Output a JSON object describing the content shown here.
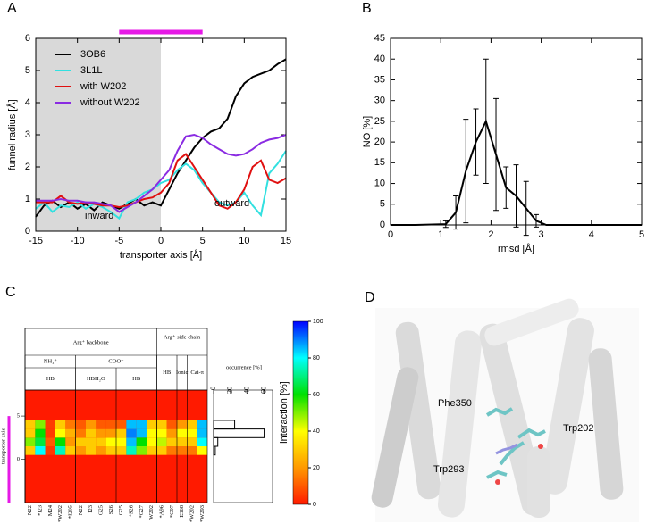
{
  "chart_data": [
    {
      "type": "line",
      "panel": "A",
      "xlabel": "transporter axis [Å]",
      "ylabel": "funnel radius [Å]",
      "xlim": [
        -15,
        15
      ],
      "ylim": [
        0,
        6
      ],
      "xticks": [
        -15,
        -10,
        -5,
        0,
        5,
        10,
        15
      ],
      "yticks": [
        0,
        1,
        2,
        3,
        4,
        5,
        6
      ],
      "shaded_x": [
        -15,
        0
      ],
      "shade_color": "#d9d9d9",
      "highlight_x": [
        -5,
        5
      ],
      "highlight_color": "#e619e6",
      "legend": "upper left",
      "annotations": [
        "inward",
        "outward"
      ],
      "x": [
        -15,
        -14,
        -13,
        -12,
        -11,
        -10,
        -9,
        -8,
        -7,
        -6,
        -5,
        -4,
        -3,
        -2,
        -1,
        0,
        1,
        2,
        3,
        4,
        5,
        6,
        7,
        8,
        9,
        10,
        11,
        12,
        13,
        14,
        15
      ],
      "series": [
        {
          "name": "3OB6",
          "color": "#000000",
          "values": [
            0.45,
            0.8,
            0.95,
            0.75,
            0.9,
            0.7,
            0.85,
            0.65,
            0.9,
            0.8,
            0.7,
            0.85,
            1.0,
            0.8,
            0.9,
            0.8,
            1.3,
            1.8,
            2.2,
            2.6,
            2.9,
            3.1,
            3.2,
            3.5,
            4.2,
            4.6,
            4.8,
            4.9,
            5.0,
            5.2,
            5.35
          ]
        },
        {
          "name": "3L1L",
          "color": "#33e0e0",
          "values": [
            0.7,
            0.9,
            0.6,
            0.8,
            0.75,
            0.9,
            0.7,
            0.85,
            0.75,
            0.6,
            0.4,
            0.9,
            1.0,
            1.2,
            1.3,
            1.5,
            1.6,
            1.9,
            2.1,
            1.9,
            1.5,
            1.2,
            0.9,
            0.8,
            0.9,
            1.2,
            0.8,
            0.5,
            1.8,
            2.1,
            2.5
          ]
        },
        {
          "name": "with W202",
          "color": "#e01010",
          "values": [
            0.9,
            0.9,
            0.9,
            1.1,
            0.9,
            0.85,
            0.9,
            0.85,
            0.8,
            0.8,
            0.75,
            0.8,
            0.9,
            1.0,
            1.05,
            1.2,
            1.5,
            2.2,
            2.4,
            2.0,
            1.6,
            1.2,
            0.8,
            0.7,
            0.9,
            1.3,
            2.0,
            2.2,
            1.6,
            1.5,
            1.65
          ]
        },
        {
          "name": "without W202",
          "color": "#8a2be2",
          "values": [
            0.95,
            0.95,
            0.95,
            1.0,
            0.95,
            0.95,
            0.9,
            0.9,
            0.85,
            0.8,
            0.6,
            0.75,
            0.9,
            1.1,
            1.3,
            1.6,
            1.9,
            2.5,
            2.95,
            3.0,
            2.9,
            2.7,
            2.55,
            2.4,
            2.35,
            2.4,
            2.55,
            2.75,
            2.85,
            2.9,
            3.0
          ]
        }
      ]
    },
    {
      "type": "errorline",
      "panel": "B",
      "xlabel": "rmsd [Å]",
      "ylabel": "NO [%]",
      "xlim": [
        0,
        5
      ],
      "ylim": [
        0,
        45
      ],
      "xticks": [
        0,
        1,
        2,
        3,
        4,
        5
      ],
      "yticks": [
        0,
        5,
        10,
        15,
        20,
        25,
        30,
        35,
        40,
        45
      ],
      "color": "#000000",
      "x": [
        0,
        0.5,
        1.1,
        1.3,
        1.5,
        1.7,
        1.9,
        2.1,
        2.3,
        2.5,
        2.7,
        2.9,
        3.1,
        3.5,
        4,
        4.5,
        5
      ],
      "values": [
        0,
        0,
        0.2,
        3,
        13,
        20,
        25,
        17,
        9,
        7,
        4,
        1,
        0,
        0,
        0,
        0,
        0
      ],
      "errors": [
        0,
        0,
        0.8,
        4,
        12.5,
        8,
        15,
        13.5,
        5,
        7.5,
        6.5,
        1.5,
        0,
        0,
        0,
        0,
        0
      ]
    },
    {
      "type": "heatmap",
      "panel": "C",
      "ylabel": "transporter axis",
      "ylim": [
        -5,
        8
      ],
      "yticks": [
        0,
        5
      ],
      "highlight_y": [
        -5,
        5
      ],
      "highlight_color": "#e619e6",
      "colorbar_label": "interaction [%]",
      "clim": [
        0,
        100
      ],
      "cticks": [
        0,
        20,
        40,
        60,
        80,
        100
      ],
      "colormap": [
        "#ff1a00",
        "#ff9900",
        "#ffff00",
        "#00e000",
        "#00ffff",
        "#0000ff"
      ],
      "groups": [
        {
          "label": "Arg⁺ backbone",
          "subgroups": [
            {
              "label": "NH₃⁺",
              "interactions": [
                {
                  "label": "HB",
                  "columns": [
                    "N22",
                    "*I23",
                    "M24",
                    "*W202",
                    "*I205"
                  ]
                }
              ]
            },
            {
              "label": "COO⁻",
              "interactions": [
                {
                  "label": "HBH₂O",
                  "columns": [
                    "N22",
                    "I23",
                    "G25",
                    "S26"
                  ]
                },
                {
                  "label": "HB",
                  "columns": [
                    "G25",
                    "*S26",
                    "*G27",
                    "W202"
                  ]
                }
              ]
            }
          ]
        },
        {
          "label": "Arg⁺ side chain",
          "subgroups": [
            {
              "interactions": [
                {
                  "label": "HB",
                  "columns": [
                    "*A96",
                    "*C97"
                  ]
                },
                {
                  "label": "Ionic",
                  "columns": [
                    "E368"
                  ]
                },
                {
                  "label": "Cat-π",
                  "columns": [
                    "*W202",
                    "*W293"
                  ]
                }
              ]
            }
          ]
        }
      ],
      "y": [
        1,
        2,
        3,
        4
      ],
      "values": [
        [
          30,
          80,
          5,
          75,
          30,
          20,
          30,
          20,
          30,
          30,
          75,
          50,
          30,
          30,
          15,
          15,
          15,
          40
        ],
        [
          50,
          65,
          10,
          60,
          20,
          30,
          30,
          30,
          40,
          40,
          85,
          60,
          40,
          45,
          30,
          30,
          30,
          80
        ],
        [
          30,
          60,
          5,
          40,
          25,
          15,
          30,
          20,
          20,
          30,
          90,
          85,
          40,
          40,
          20,
          40,
          40,
          85
        ],
        [
          30,
          50,
          5,
          30,
          15,
          10,
          20,
          10,
          10,
          10,
          85,
          85,
          30,
          30,
          10,
          20,
          30,
          85
        ]
      ],
      "occurrence_label": "occurrence [%]",
      "occurrence_xlim": [
        0,
        70
      ],
      "occurrence_ticks": [
        0,
        20,
        40,
        60
      ],
      "occurrence": [
        2,
        5,
        60,
        25
      ]
    }
  ],
  "illustration": {
    "panel": "D",
    "labels": [
      "Phe350",
      "Trp202",
      "Trp293"
    ]
  }
}
